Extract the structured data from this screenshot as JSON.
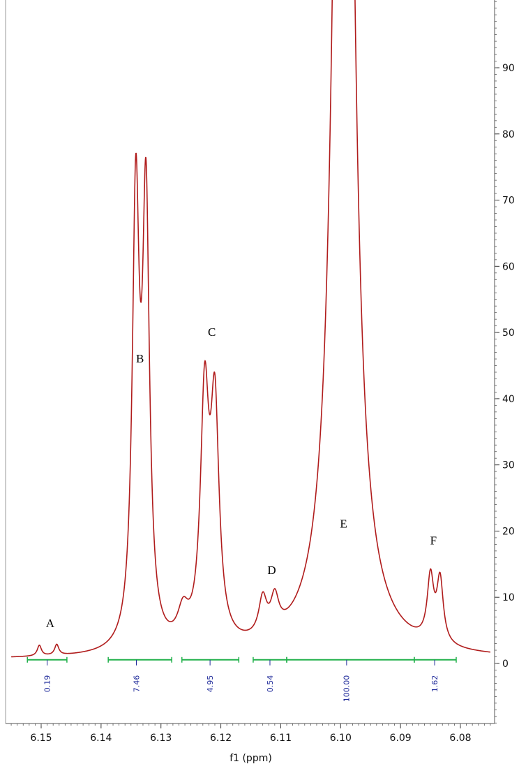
{
  "chart_data": {
    "type": "line",
    "title": "",
    "xlabel": "f1 (ppm)",
    "ylabel": "",
    "x_reversed": true,
    "xlim": [
      6.155,
      6.075
    ],
    "ylim": [
      -10,
      100
    ],
    "grid": false,
    "x_ticks": [
      "6.15",
      "6.14",
      "6.13",
      "6.12",
      "6.11",
      "6.10",
      "6.09",
      "6.08"
    ],
    "x_tick_values": [
      6.15,
      6.14,
      6.13,
      6.12,
      6.11,
      6.1,
      6.09,
      6.08
    ],
    "y_ticks": [
      "0",
      "10",
      "20",
      "30",
      "40",
      "50",
      "60",
      "70",
      "80",
      "90"
    ],
    "y_tick_values": [
      0,
      10,
      20,
      30,
      40,
      50,
      60,
      70,
      80,
      90
    ],
    "line_color": "#b01c1c",
    "integral_color": "#22b14c",
    "integral_value_color": "#1f2a9a",
    "peak_labels": [
      {
        "label": "A",
        "x": 6.1485,
        "y": 5.5
      },
      {
        "label": "B",
        "x": 6.1335,
        "y": 45.5
      },
      {
        "label": "C",
        "x": 6.1215,
        "y": 49.5
      },
      {
        "label": "D",
        "x": 6.1115,
        "y": 13.5
      },
      {
        "label": "E",
        "x": 6.0995,
        "y": 20.5
      },
      {
        "label": "F",
        "x": 6.0845,
        "y": 18.0
      }
    ],
    "integrals": [
      {
        "from": 6.1523,
        "to": 6.1457,
        "value": "0.19",
        "marker": 6.149
      },
      {
        "from": 6.1388,
        "to": 6.1282,
        "value": "7.46",
        "marker": 6.1341
      },
      {
        "from": 6.1265,
        "to": 6.117,
        "value": "4.95",
        "marker": 6.1218
      },
      {
        "from": 6.1146,
        "to": 6.109,
        "value": "0.54",
        "marker": 6.1118
      },
      {
        "from": 6.109,
        "to": 6.0877,
        "value": "100.00",
        "marker": 6.099
      },
      {
        "from": 6.0877,
        "to": 6.0807,
        "value": "1.62",
        "marker": 6.0843
      }
    ],
    "peaks": [
      {
        "center": 6.1503,
        "height": 1.6,
        "width": 0.00042
      },
      {
        "center": 6.1474,
        "height": 1.6,
        "width": 0.00042
      },
      {
        "center": 6.1342,
        "height": 66,
        "width": 0.0007
      },
      {
        "center": 6.1325,
        "height": 65,
        "width": 0.0007
      },
      {
        "center": 6.1227,
        "height": 36,
        "width": 0.00085
      },
      {
        "center": 6.121,
        "height": 34,
        "width": 0.00085
      },
      {
        "center": 6.1263,
        "height": 4.5,
        "width": 0.0011
      },
      {
        "center": 6.113,
        "height": 5.5,
        "width": 0.0008
      },
      {
        "center": 6.111,
        "height": 5.0,
        "width": 0.0008
      },
      {
        "center": 6.0995,
        "height": 260,
        "width": 0.0015
      },
      {
        "center": 6.085,
        "height": 9.5,
        "width": 0.00065
      },
      {
        "center": 6.0834,
        "height": 9.5,
        "width": 0.00065
      }
    ],
    "baseline": 0.6,
    "x_range_data": [
      6.155,
      6.075
    ]
  }
}
